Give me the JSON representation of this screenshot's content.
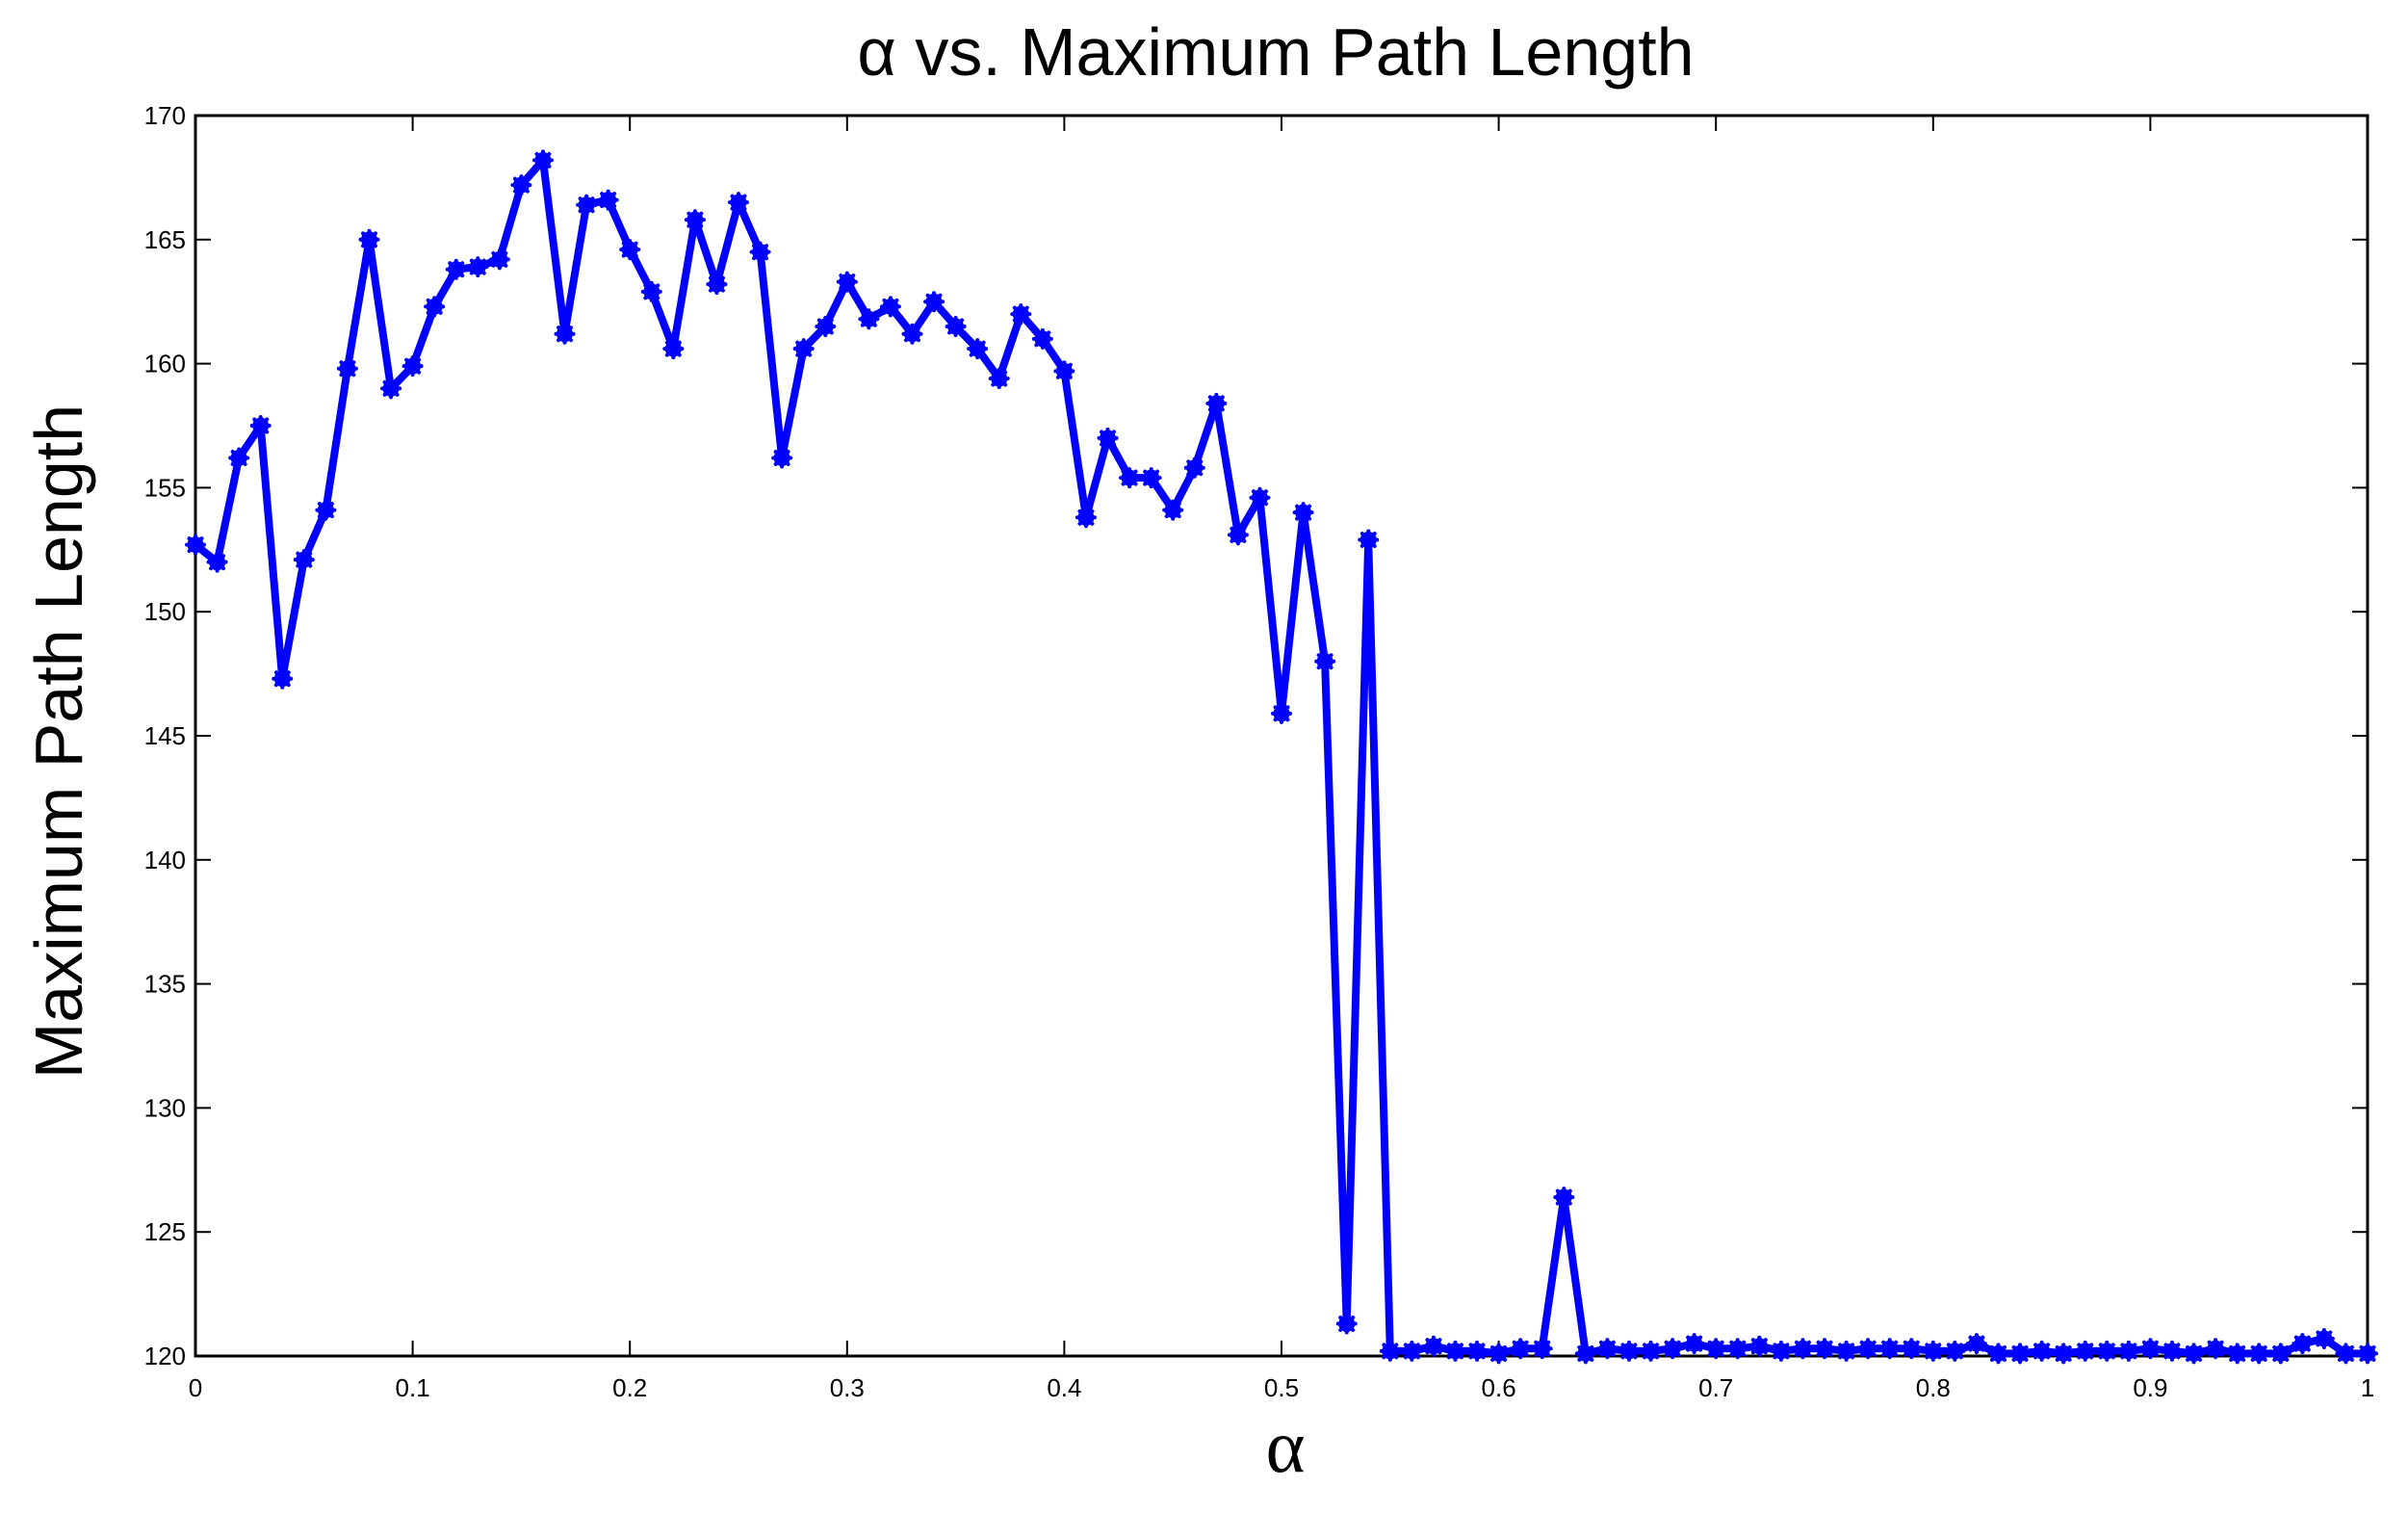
{
  "chart_data": {
    "type": "line",
    "title": "α vs. Maximum Path Length",
    "xlabel": "α",
    "ylabel": "Maximum Path Length",
    "xlim": [
      0,
      1
    ],
    "ylim": [
      120,
      170
    ],
    "x_ticks": [
      0,
      0.1,
      0.2,
      0.3,
      0.4,
      0.5,
      0.6,
      0.7,
      0.8,
      0.9,
      1
    ],
    "x_tick_labels": [
      "0",
      "0.1",
      "0.2",
      "0.3",
      "0.4",
      "0.5",
      "0.6",
      "0.7",
      "0.8",
      "0.9",
      "1"
    ],
    "y_ticks": [
      120,
      125,
      130,
      135,
      140,
      145,
      150,
      155,
      160,
      165,
      170
    ],
    "y_tick_labels": [
      "120",
      "125",
      "130",
      "135",
      "140",
      "145",
      "150",
      "155",
      "160",
      "165",
      "170"
    ],
    "grid": false,
    "series": [
      {
        "color": "#0000ff",
        "marker": "asterisk",
        "x": [
          0,
          0.01,
          0.02,
          0.03,
          0.04,
          0.05,
          0.06,
          0.07,
          0.08,
          0.09,
          0.1,
          0.11,
          0.12,
          0.13,
          0.14,
          0.15,
          0.16,
          0.17,
          0.18,
          0.19,
          0.2,
          0.21,
          0.22,
          0.23,
          0.24,
          0.25,
          0.26,
          0.27,
          0.28,
          0.29,
          0.3,
          0.31,
          0.32,
          0.33,
          0.34,
          0.35,
          0.36,
          0.37,
          0.38,
          0.39,
          0.4,
          0.41,
          0.42,
          0.43,
          0.44,
          0.45,
          0.46,
          0.47,
          0.48,
          0.49,
          0.5,
          0.51,
          0.52,
          0.53,
          0.54,
          0.55,
          0.56,
          0.57,
          0.58,
          0.59,
          0.6,
          0.61,
          0.62,
          0.63,
          0.64,
          0.65,
          0.66,
          0.67,
          0.68,
          0.69,
          0.7,
          0.71,
          0.72,
          0.73,
          0.74,
          0.75,
          0.76,
          0.77,
          0.78,
          0.79,
          0.8,
          0.81,
          0.82,
          0.83,
          0.84,
          0.85,
          0.86,
          0.87,
          0.88,
          0.89,
          0.9,
          0.91,
          0.92,
          0.93,
          0.94,
          0.95,
          0.96,
          0.97,
          0.98,
          0.99,
          1
        ],
        "y": [
          152.7,
          152.0,
          156.2,
          157.5,
          147.3,
          152.1,
          154.1,
          159.8,
          165.0,
          159.0,
          159.9,
          162.3,
          163.8,
          163.9,
          164.2,
          167.2,
          168.2,
          161.2,
          166.4,
          166.6,
          164.6,
          162.9,
          160.6,
          165.8,
          163.2,
          166.5,
          164.5,
          156.2,
          160.6,
          161.5,
          163.3,
          161.8,
          162.3,
          161.2,
          162.5,
          161.5,
          160.6,
          159.4,
          162.0,
          161.0,
          159.7,
          153.8,
          157.0,
          155.4,
          155.4,
          154.1,
          155.8,
          158.4,
          153.1,
          154.6,
          145.9,
          154.0,
          148.0,
          121.3,
          152.9,
          120.2,
          120.2,
          120.4,
          120.2,
          120.2,
          120.1,
          120.3,
          120.3,
          126.4,
          120.1,
          120.3,
          120.2,
          120.2,
          120.3,
          120.5,
          120.3,
          120.3,
          120.4,
          120.2,
          120.3,
          120.3,
          120.2,
          120.3,
          120.3,
          120.3,
          120.2,
          120.2,
          120.5,
          120.1,
          120.1,
          120.2,
          120.1,
          120.2,
          120.2,
          120.2,
          120.3,
          120.2,
          120.1,
          120.3,
          120.1,
          120.1,
          120.1,
          120.5,
          120.7,
          120.1,
          120.1
        ]
      }
    ]
  }
}
